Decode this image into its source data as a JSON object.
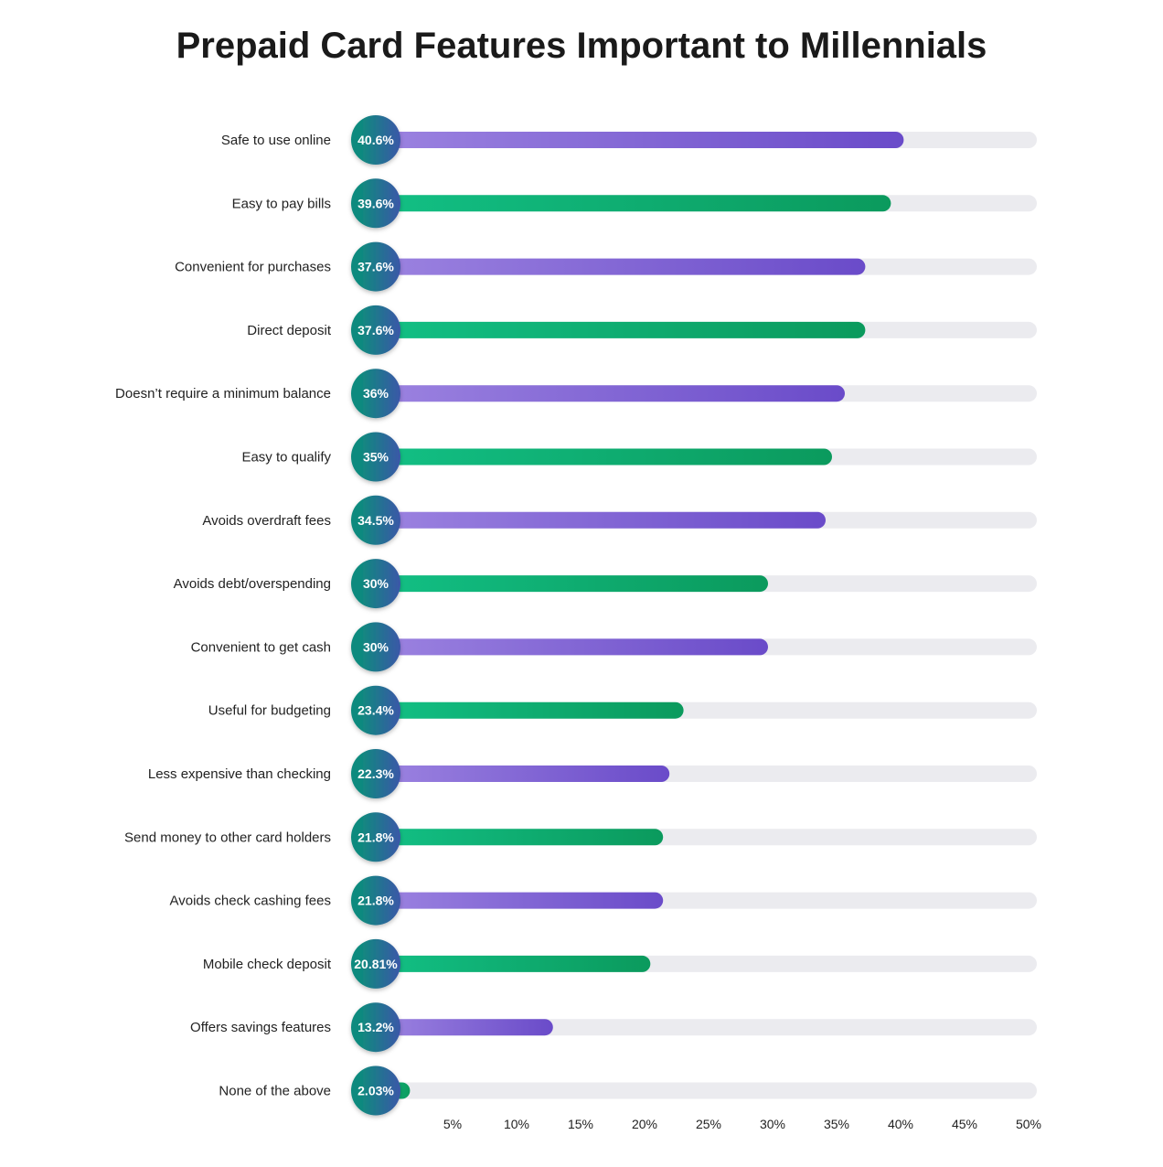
{
  "chart_data": {
    "type": "bar",
    "orientation": "horizontal",
    "title": "Prepaid Card Features Important to Millennials",
    "xlabel": "",
    "ylabel": "",
    "xlim": [
      0,
      50
    ],
    "x_ticks": [
      "5%",
      "10%",
      "15%",
      "20%",
      "25%",
      "30%",
      "35%",
      "40%",
      "45%",
      "50%"
    ],
    "grid": false,
    "legend": "none",
    "bars": [
      {
        "category": "Safe to use online",
        "value": 40.6,
        "label": "40.6%",
        "color": "purple"
      },
      {
        "category": "Easy to pay bills",
        "value": 39.6,
        "label": "39.6%",
        "color": "green"
      },
      {
        "category": "Convenient for purchases",
        "value": 37.6,
        "label": "37.6%",
        "color": "purple"
      },
      {
        "category": "Direct deposit",
        "value": 37.6,
        "label": "37.6%",
        "color": "green"
      },
      {
        "category": "Doesn’t require a minimum balance",
        "value": 36,
        "label": "36%",
        "color": "purple"
      },
      {
        "category": "Easy to qualify",
        "value": 35,
        "label": "35%",
        "color": "green"
      },
      {
        "category": "Avoids overdraft fees",
        "value": 34.5,
        "label": "34.5%",
        "color": "purple"
      },
      {
        "category": "Avoids debt/overspending",
        "value": 30,
        "label": "30%",
        "color": "green"
      },
      {
        "category": "Convenient to get cash",
        "value": 30,
        "label": "30%",
        "color": "purple"
      },
      {
        "category": "Useful for budgeting",
        "value": 23.4,
        "label": "23.4%",
        "color": "green"
      },
      {
        "category": "Less expensive than checking",
        "value": 22.3,
        "label": "22.3%",
        "color": "purple"
      },
      {
        "category": "Send money to other card holders",
        "value": 21.8,
        "label": "21.8%",
        "color": "green"
      },
      {
        "category": "Avoids check cashing fees",
        "value": 21.8,
        "label": "21.8%",
        "color": "purple"
      },
      {
        "category": "Mobile check deposit",
        "value": 20.81,
        "label": "20.81%",
        "color": "green"
      },
      {
        "category": "Offers savings features",
        "value": 13.2,
        "label": "13.2%",
        "color": "purple"
      },
      {
        "category": "None of the above",
        "value": 2.03,
        "label": "2.03%",
        "color": "green"
      }
    ]
  },
  "colors": {
    "purple_start": "#9b82e0",
    "purple_end": "#6a4bc9",
    "green_start": "#12bf84",
    "green_end": "#0b9a5d",
    "track": "#ebebef",
    "circle_start": "#0f8a7e",
    "circle_end": "#3b57a8"
  }
}
